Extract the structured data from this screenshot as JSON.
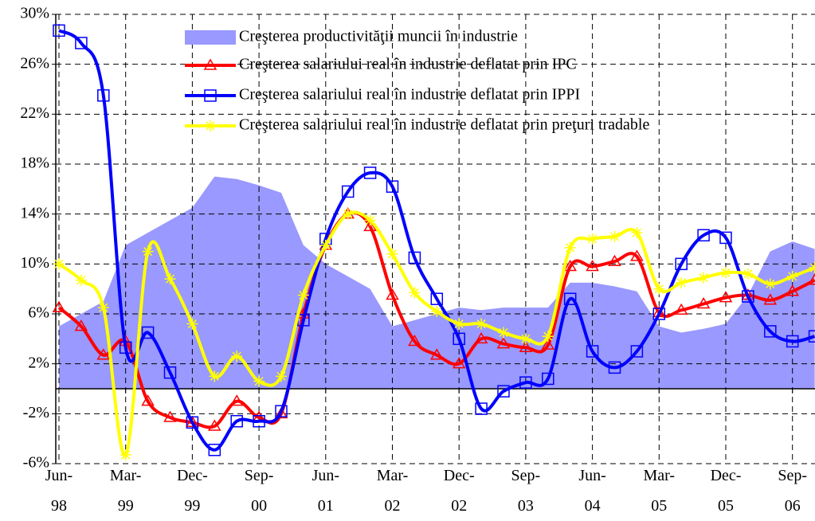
{
  "chart_data": {
    "type": "line",
    "categories": [
      "Jun-\n98",
      null,
      null,
      "Mar-\n99",
      null,
      null,
      "Dec-\n99",
      null,
      null,
      "Sep-\n00",
      null,
      null,
      "Jun-\n01",
      null,
      null,
      "Mar-\n02",
      null,
      null,
      "Dec-\n02",
      null,
      null,
      "Sep-\n03",
      null,
      null,
      "Jun-\n04",
      null,
      null,
      "Mar-\n05",
      null,
      null,
      "Dec-\n05",
      null,
      null,
      "Sep-\n06",
      null
    ],
    "series": [
      {
        "name": "Creşterea productivităţii muncii în industrie",
        "style": "area",
        "color": "#9999ff",
        "values": [
          5,
          6,
          7,
          11.5,
          12.5,
          13.5,
          14.5,
          17,
          16.8,
          16.3,
          15.7,
          11.5,
          10,
          9,
          8,
          5,
          5.5,
          6,
          6.5,
          6.3,
          6.5,
          6.5,
          6.5,
          8.5,
          8.5,
          8.2,
          7.8,
          5,
          4.5,
          4.8,
          5.2,
          7.5,
          11,
          11.8,
          11.2
        ]
      },
      {
        "name": "Creşterea salariului real în industrie deflatat prin IPC",
        "style": "line",
        "marker": "triangle",
        "color": "#ff0000",
        "values": [
          6.5,
          5,
          2.7,
          3.8,
          -1,
          -2.3,
          -2.7,
          -3,
          -1,
          -2.3,
          -2,
          6,
          11.5,
          14,
          13,
          7.5,
          3.8,
          2.7,
          2,
          4,
          3.6,
          3.3,
          3.5,
          9.8,
          9.8,
          10.2,
          10.6,
          6.1,
          6.3,
          6.8,
          7.3,
          7.5,
          7.1,
          7.8,
          8.7
        ]
      },
      {
        "name": "Creşterea salariului real în industrie deflatat prin IPPI",
        "style": "line",
        "marker": "square",
        "color": "#0000ff",
        "values": [
          28.7,
          27.7,
          23.5,
          3.3,
          4.5,
          1.3,
          -2.7,
          -4.9,
          -2.6,
          -2.6,
          -1.8,
          5.5,
          12,
          15.8,
          17.3,
          16.2,
          10.5,
          7.2,
          4,
          -1.6,
          -0.2,
          0.5,
          0.8,
          7.2,
          3,
          1.7,
          3,
          6,
          10,
          12.3,
          12.1,
          7.4,
          4.6,
          3.8,
          4.2
        ]
      },
      {
        "name": "Creşterea salariului real în industrie deflatat prin preţuri tradable",
        "style": "line",
        "marker": "star",
        "color": "#ffff00",
        "values": [
          10,
          8.7,
          6.5,
          -5.3,
          11,
          8.8,
          5.2,
          1,
          2.6,
          0.6,
          1,
          7.5,
          11.5,
          14,
          13.5,
          10.8,
          7.7,
          6.2,
          5.2,
          5.2,
          4.5,
          4,
          4.2,
          11.3,
          12,
          12.2,
          12.5,
          8,
          8.5,
          8.9,
          9.3,
          9.2,
          8.4,
          9,
          9.7
        ]
      }
    ],
    "ylim": [
      -6,
      30
    ],
    "yticks": [
      {
        "value": -6,
        "label": "-6%"
      },
      {
        "value": -2,
        "label": "-2%"
      },
      {
        "value": 2,
        "label": "2%"
      },
      {
        "value": 6,
        "label": "6%"
      },
      {
        "value": 10,
        "label": "10%"
      },
      {
        "value": 14,
        "label": "14%"
      },
      {
        "value": 18,
        "label": "18%"
      },
      {
        "value": 22,
        "label": "22%"
      },
      {
        "value": 26,
        "label": "26%"
      },
      {
        "value": 30,
        "label": "30%"
      }
    ],
    "grid": true
  }
}
